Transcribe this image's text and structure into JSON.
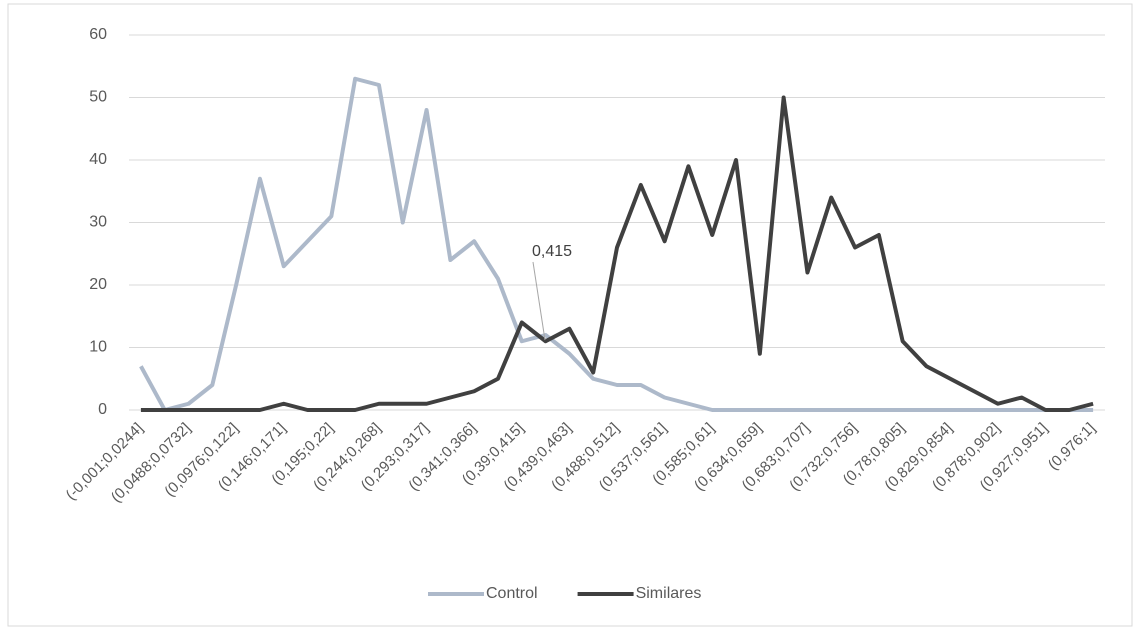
{
  "chart_data": {
    "type": "line",
    "categories": [
      "(-0,001;0,0244]",
      null,
      "(0,0488;0,0732]",
      null,
      "(0,0976;0,122]",
      null,
      "(0,146;0,171]",
      null,
      "(0,195;0,22]",
      null,
      "(0,244;0,268]",
      null,
      "(0,293;0,317]",
      null,
      "(0,341;0,366]",
      null,
      "(0,39;0,415]",
      null,
      "(0,439;0,463]",
      null,
      "(0,488;0,512]",
      null,
      "(0,537;0,561]",
      null,
      "(0,585;0,61]",
      null,
      "(0,634;0,659]",
      null,
      "(0,683;0,707]",
      null,
      "(0,732;0,756]",
      null,
      "(0,78;0,805]",
      null,
      "(0,829;0,854]",
      null,
      "(0,878;0,902]",
      null,
      "(0,927;0,951]",
      null,
      "(0,976;1]"
    ],
    "series": [
      {
        "name": "Control",
        "color": "#adb9ca",
        "values": [
          7,
          0,
          1,
          4,
          20,
          37,
          23,
          27,
          31,
          53,
          52,
          30,
          48,
          24,
          27,
          21,
          11,
          12,
          9,
          5,
          4,
          4,
          2,
          1,
          0,
          0,
          0,
          0,
          0,
          0,
          0,
          0,
          0,
          0,
          0,
          0,
          0,
          0,
          0,
          0,
          0
        ]
      },
      {
        "name": "Similares",
        "color": "#404040",
        "values": [
          0,
          0,
          0,
          0,
          0,
          0,
          1,
          0,
          0,
          0,
          1,
          1,
          1,
          2,
          3,
          5,
          14,
          11,
          13,
          6,
          26,
          36,
          27,
          39,
          28,
          40,
          9,
          50,
          22,
          34,
          26,
          28,
          11,
          7,
          5,
          3,
          1,
          2,
          0,
          0,
          1
        ]
      }
    ],
    "annotations": [
      {
        "text": "0,415"
      }
    ],
    "ylim": [
      0,
      60
    ],
    "yticks": [
      0,
      10,
      20,
      30,
      40,
      50,
      60
    ],
    "grid": true,
    "legend": "bottom"
  }
}
